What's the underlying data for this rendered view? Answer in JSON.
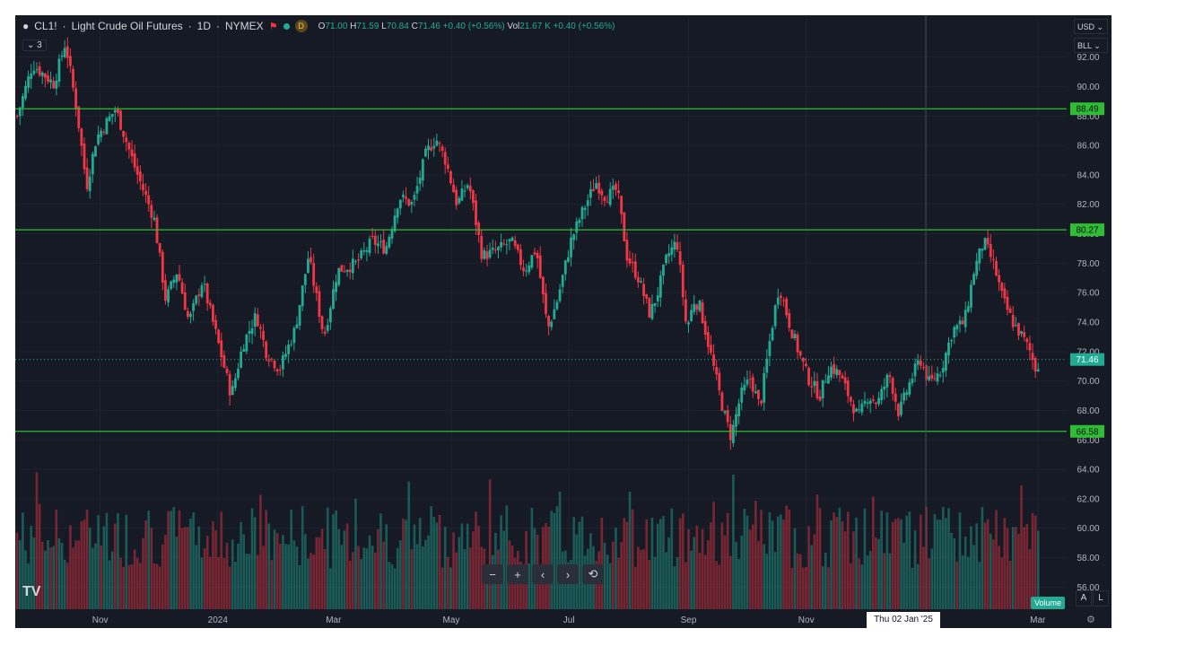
{
  "header": {
    "symbol": "CL1!",
    "title": "Light Crude Oil Futures",
    "interval": "1D",
    "exchange": "NYMEX",
    "badge_letter": "D",
    "ohlc": [
      {
        "k": "O",
        "v": "71.00"
      },
      {
        "k": "H",
        "v": "71.59"
      },
      {
        "k": "L",
        "v": "70.84"
      },
      {
        "k": "C",
        "v": "71.46"
      },
      {
        "k": "",
        "v": "+0.40 (+0.56%)"
      },
      {
        "k": "Vol",
        "v": "21.67 K"
      },
      {
        "k": "",
        "v": "+0.40 (+0.56%)"
      }
    ],
    "collapse_label": "3"
  },
  "corner": {
    "currency": "USD",
    "unit": "BLL"
  },
  "toolbar": {
    "zoom_out": "−",
    "zoom_in": "+",
    "scroll_left": "‹",
    "scroll_right": "›",
    "reset": "⟲"
  },
  "logo_text": "TV",
  "volume_label": "Volume",
  "auto_label": "A",
  "log_label": "L",
  "crosshair_date": "Thu 02 Jan '25",
  "colors": {
    "up": "#22ab94",
    "down": "#f23645",
    "level_line": "#2ebd35",
    "background": "#161a25"
  },
  "icons": [
    "oil-drop-icon",
    "flag-icon",
    "chevron-down-icon",
    "gear-icon",
    "reset-icon"
  ],
  "chart_data": {
    "type": "candlestick",
    "symbol": "CL1!",
    "ylim": [
      54.5,
      93.5
    ],
    "y_ticks": [
      "92.00",
      "90.00",
      "88.00",
      "86.00",
      "84.00",
      "82.00",
      "80.00",
      "78.00",
      "76.00",
      "74.00",
      "72.00",
      "70.00",
      "68.00",
      "66.00",
      "64.00",
      "62.00",
      "60.00",
      "58.00",
      "56.00"
    ],
    "x_ticks": [
      "Nov",
      "2024",
      "Mar",
      "May",
      "Jul",
      "Sep",
      "Nov",
      "Mar"
    ],
    "x_tick_days": [
      -61,
      0,
      60,
      121,
      182,
      244,
      305,
      425
    ],
    "x_range_days": [
      -105,
      440
    ],
    "last_price": 71.46,
    "levels": [
      {
        "label": "88.49",
        "value": 88.49
      },
      {
        "label": "80.27",
        "value": 80.27
      },
      {
        "label": "66.58",
        "value": 66.58
      }
    ],
    "close_path": [
      {
        "day": -104,
        "close": 88.0
      },
      {
        "day": -96,
        "close": 91.5
      },
      {
        "day": -85,
        "close": 90.2
      },
      {
        "day": -79,
        "close": 93.0
      },
      {
        "day": -73,
        "close": 88.3
      },
      {
        "day": -68,
        "close": 83.2
      },
      {
        "day": -63,
        "close": 86.5
      },
      {
        "day": -53,
        "close": 88.5
      },
      {
        "day": -43,
        "close": 84.5
      },
      {
        "day": -33,
        "close": 81.0
      },
      {
        "day": -27,
        "close": 75.5
      },
      {
        "day": -21,
        "close": 77.5
      },
      {
        "day": -15,
        "close": 74.0
      },
      {
        "day": -8,
        "close": 76.8
      },
      {
        "day": 0,
        "close": 72.7
      },
      {
        "day": 7,
        "close": 69.0
      },
      {
        "day": 13,
        "close": 72.5
      },
      {
        "day": 20,
        "close": 74.5
      },
      {
        "day": 25,
        "close": 72.0
      },
      {
        "day": 32,
        "close": 70.8
      },
      {
        "day": 40,
        "close": 73.5
      },
      {
        "day": 47,
        "close": 78.5
      },
      {
        "day": 55,
        "close": 73.0
      },
      {
        "day": 62,
        "close": 77.5
      },
      {
        "day": 72,
        "close": 78.0
      },
      {
        "day": 80,
        "close": 79.5
      },
      {
        "day": 87,
        "close": 79.0
      },
      {
        "day": 94,
        "close": 82.5
      },
      {
        "day": 101,
        "close": 82.0
      },
      {
        "day": 108,
        "close": 85.5
      },
      {
        "day": 113,
        "close": 86.5
      },
      {
        "day": 118,
        "close": 85.0
      },
      {
        "day": 124,
        "close": 82.0
      },
      {
        "day": 130,
        "close": 83.5
      },
      {
        "day": 137,
        "close": 78.5
      },
      {
        "day": 144,
        "close": 78.8
      },
      {
        "day": 152,
        "close": 79.5
      },
      {
        "day": 159,
        "close": 77.5
      },
      {
        "day": 165,
        "close": 79.0
      },
      {
        "day": 171,
        "close": 73.5
      },
      {
        "day": 176,
        "close": 75.5
      },
      {
        "day": 183,
        "close": 79.5
      },
      {
        "day": 189,
        "close": 81.5
      },
      {
        "day": 196,
        "close": 83.5
      },
      {
        "day": 201,
        "close": 82.5
      },
      {
        "day": 207,
        "close": 83.0
      },
      {
        "day": 212,
        "close": 78.5
      },
      {
        "day": 218,
        "close": 77.0
      },
      {
        "day": 224,
        "close": 74.5
      },
      {
        "day": 228,
        "close": 76.0
      },
      {
        "day": 233,
        "close": 78.5
      },
      {
        "day": 238,
        "close": 79.5
      },
      {
        "day": 243,
        "close": 73.5
      },
      {
        "day": 247,
        "close": 75.5
      },
      {
        "day": 250,
        "close": 75.0
      },
      {
        "day": 256,
        "close": 71.5
      },
      {
        "day": 262,
        "close": 68.0
      },
      {
        "day": 266,
        "close": 66.2
      },
      {
        "day": 271,
        "close": 69.0
      },
      {
        "day": 276,
        "close": 70.2
      },
      {
        "day": 281,
        "close": 68.2
      },
      {
        "day": 287,
        "close": 73.5
      },
      {
        "day": 291,
        "close": 76.5
      },
      {
        "day": 296,
        "close": 74.0
      },
      {
        "day": 301,
        "close": 72.0
      },
      {
        "day": 306,
        "close": 70.2
      },
      {
        "day": 312,
        "close": 69.0
      },
      {
        "day": 317,
        "close": 71.0
      },
      {
        "day": 322,
        "close": 70.5
      },
      {
        "day": 327,
        "close": 69.0
      },
      {
        "day": 332,
        "close": 67.5
      },
      {
        "day": 337,
        "close": 69.0
      },
      {
        "day": 342,
        "close": 68.5
      },
      {
        "day": 348,
        "close": 70.5
      },
      {
        "day": 353,
        "close": 67.8
      },
      {
        "day": 359,
        "close": 70.0
      },
      {
        "day": 364,
        "close": 71.5
      },
      {
        "day": 369,
        "close": 69.8
      },
      {
        "day": 375,
        "close": 70.8
      },
      {
        "day": 381,
        "close": 73.5
      },
      {
        "day": 387,
        "close": 74.0
      },
      {
        "day": 392,
        "close": 77.5
      },
      {
        "day": 397,
        "close": 79.5
      },
      {
        "day": 402,
        "close": 78.0
      },
      {
        "day": 407,
        "close": 75.5
      },
      {
        "day": 412,
        "close": 74.0
      },
      {
        "day": 417,
        "close": 73.0
      },
      {
        "day": 421,
        "close": 72.0
      },
      {
        "day": 424,
        "close": 70.8
      },
      {
        "day": 426,
        "close": 71.46
      }
    ],
    "crosshair_day": 367,
    "volume_ylim": [
      0,
      180
    ],
    "volume_typical_range_k": [
      40,
      150
    ]
  }
}
